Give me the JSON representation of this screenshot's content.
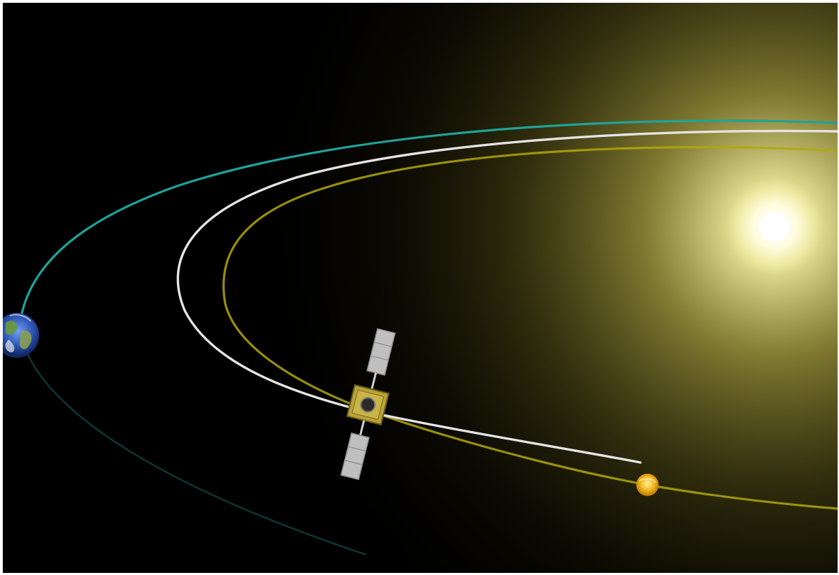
{
  "scene": {
    "background_color": "#000000",
    "frame_color": "#ffffff",
    "objects": [
      {
        "name": "sun",
        "icon": "sun-icon",
        "color": "#fffbe0",
        "glow_color": "#e8e070"
      },
      {
        "name": "earth",
        "icon": "earth-icon",
        "color": "#3b6fd0"
      },
      {
        "name": "venus",
        "icon": "venus-icon",
        "color": "#f2b51c"
      },
      {
        "name": "spacecraft",
        "icon": "spacecraft-icon",
        "color": "#b8a23a",
        "panel_color": "#bfbfbf"
      }
    ],
    "orbits": [
      {
        "name": "earth-orbit",
        "color": "#1fa39a"
      },
      {
        "name": "transfer-trajectory",
        "color": "#e4e4e4"
      },
      {
        "name": "venus-orbit",
        "color": "#b3a70c"
      }
    ]
  }
}
